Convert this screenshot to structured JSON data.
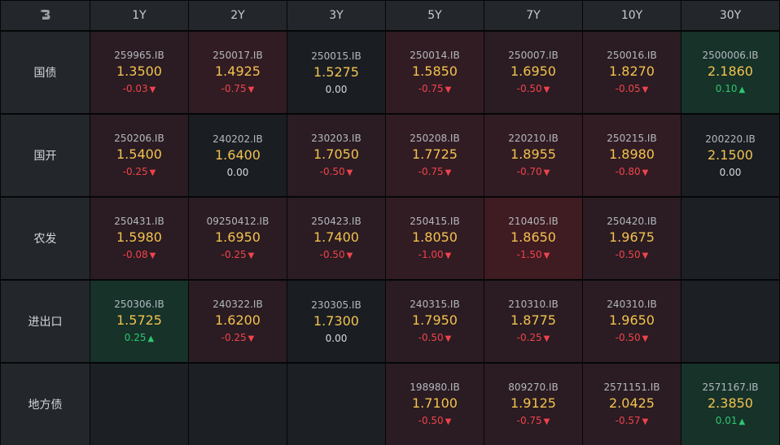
{
  "logo_icon": "b-logo-icon",
  "columns": [
    "1Y",
    "2Y",
    "3Y",
    "5Y",
    "7Y",
    "10Y",
    "30Y"
  ],
  "rows": [
    {
      "label": "国债",
      "cells": [
        {
          "code": "259965.IB",
          "rate": "1.3500",
          "change": "-0.03",
          "dir": "down",
          "bg": "bg-red1"
        },
        {
          "code": "250017.IB",
          "rate": "1.4925",
          "change": "-0.75",
          "dir": "down",
          "bg": "bg-red2"
        },
        {
          "code": "250015.IB",
          "rate": "1.5275",
          "change": "0.00",
          "dir": "flat",
          "bg": "bg-neutral"
        },
        {
          "code": "250014.IB",
          "rate": "1.5850",
          "change": "-0.75",
          "dir": "down",
          "bg": "bg-red2"
        },
        {
          "code": "250007.IB",
          "rate": "1.6950",
          "change": "-0.50",
          "dir": "down",
          "bg": "bg-red1"
        },
        {
          "code": "250016.IB",
          "rate": "1.8270",
          "change": "-0.05",
          "dir": "down",
          "bg": "bg-red1"
        },
        {
          "code": "2500006.IB",
          "rate": "2.1860",
          "change": "0.10",
          "dir": "up",
          "bg": "bg-green"
        }
      ]
    },
    {
      "label": "国开",
      "cells": [
        {
          "code": "250206.IB",
          "rate": "1.5400",
          "change": "-0.25",
          "dir": "down",
          "bg": "bg-red1"
        },
        {
          "code": "240202.IB",
          "rate": "1.6400",
          "change": "0.00",
          "dir": "flat",
          "bg": "bg-neutral"
        },
        {
          "code": "230203.IB",
          "rate": "1.7050",
          "change": "-0.50",
          "dir": "down",
          "bg": "bg-red1"
        },
        {
          "code": "250208.IB",
          "rate": "1.7725",
          "change": "-0.75",
          "dir": "down",
          "bg": "bg-red2"
        },
        {
          "code": "220210.IB",
          "rate": "1.8955",
          "change": "-0.70",
          "dir": "down",
          "bg": "bg-red2"
        },
        {
          "code": "250215.IB",
          "rate": "1.8980",
          "change": "-0.80",
          "dir": "down",
          "bg": "bg-red2"
        },
        {
          "code": "200220.IB",
          "rate": "2.1500",
          "change": "0.00",
          "dir": "flat",
          "bg": "bg-neutral"
        }
      ]
    },
    {
      "label": "农发",
      "cells": [
        {
          "code": "250431.IB",
          "rate": "1.5980",
          "change": "-0.08",
          "dir": "down",
          "bg": "bg-red1"
        },
        {
          "code": "09250412.IB",
          "rate": "1.6950",
          "change": "-0.25",
          "dir": "down",
          "bg": "bg-red1"
        },
        {
          "code": "250423.IB",
          "rate": "1.7400",
          "change": "-0.50",
          "dir": "down",
          "bg": "bg-red1"
        },
        {
          "code": "250415.IB",
          "rate": "1.8050",
          "change": "-1.00",
          "dir": "down",
          "bg": "bg-red2"
        },
        {
          "code": "210405.IB",
          "rate": "1.8650",
          "change": "-1.50",
          "dir": "down",
          "bg": "bg-red3"
        },
        {
          "code": "250420.IB",
          "rate": "1.9675",
          "change": "-0.50",
          "dir": "down",
          "bg": "bg-red1"
        },
        null
      ]
    },
    {
      "label": "进出口",
      "cells": [
        {
          "code": "250306.IB",
          "rate": "1.5725",
          "change": "0.25",
          "dir": "up",
          "bg": "bg-green"
        },
        {
          "code": "240322.IB",
          "rate": "1.6200",
          "change": "-0.25",
          "dir": "down",
          "bg": "bg-red1"
        },
        {
          "code": "230305.IB",
          "rate": "1.7300",
          "change": "0.00",
          "dir": "flat",
          "bg": "bg-neutral"
        },
        {
          "code": "240315.IB",
          "rate": "1.7950",
          "change": "-0.50",
          "dir": "down",
          "bg": "bg-red1"
        },
        {
          "code": "210310.IB",
          "rate": "1.8775",
          "change": "-0.25",
          "dir": "down",
          "bg": "bg-red1"
        },
        {
          "code": "240310.IB",
          "rate": "1.9650",
          "change": "-0.50",
          "dir": "down",
          "bg": "bg-red1"
        },
        null
      ]
    },
    {
      "label": "地方债",
      "cells": [
        null,
        null,
        null,
        {
          "code": "198980.IB",
          "rate": "1.7100",
          "change": "-0.50",
          "dir": "down",
          "bg": "bg-red1"
        },
        {
          "code": "809270.IB",
          "rate": "1.9125",
          "change": "-0.75",
          "dir": "down",
          "bg": "bg-red1"
        },
        {
          "code": "2571151.IB",
          "rate": "2.0425",
          "change": "-0.57",
          "dir": "down",
          "bg": "bg-red1"
        },
        {
          "code": "2571167.IB",
          "rate": "2.3850",
          "change": "0.01",
          "dir": "up",
          "bg": "bg-green"
        }
      ]
    }
  ],
  "colors": {
    "up": "#2ec56f",
    "down": "#f0434d",
    "rate": "#f2c24f"
  }
}
